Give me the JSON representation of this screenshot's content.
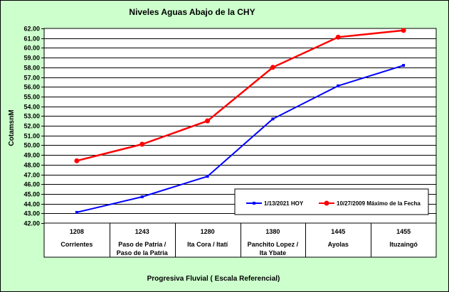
{
  "chart_data": {
    "type": "line",
    "title": "Niveles Aguas Abajo de la CHY",
    "xlabel": "Progresiva Fluvial ( Escala Referencial)",
    "ylabel": "CotamsnM",
    "ylim": [
      42.0,
      62.0
    ],
    "ystep": 1.0,
    "grid": true,
    "legend_position": "bottom-right",
    "categories": [
      {
        "code": "1208",
        "name": [
          "Corrientes"
        ]
      },
      {
        "code": "1243",
        "name": [
          "Paso de Patria /",
          "Paso de la Patria"
        ]
      },
      {
        "code": "1280",
        "name": [
          "Ita Cora / Itatí"
        ]
      },
      {
        "code": "1380",
        "name": [
          "Panchito Lopez /",
          "Ita Ybate"
        ]
      },
      {
        "code": "1445",
        "name": [
          "Ayolas"
        ]
      },
      {
        "code": "1455",
        "name": [
          "Ituzaingó"
        ]
      }
    ],
    "series": [
      {
        "name": "1/13/2021 HOY",
        "color": "#0000ff",
        "values": [
          43.1,
          44.7,
          46.8,
          52.7,
          56.1,
          58.2
        ]
      },
      {
        "name": "10/27/2009 Máximo de la Fecha",
        "color": "#ff0000",
        "values": [
          48.4,
          50.1,
          52.5,
          58.0,
          61.1,
          61.8
        ]
      }
    ]
  }
}
